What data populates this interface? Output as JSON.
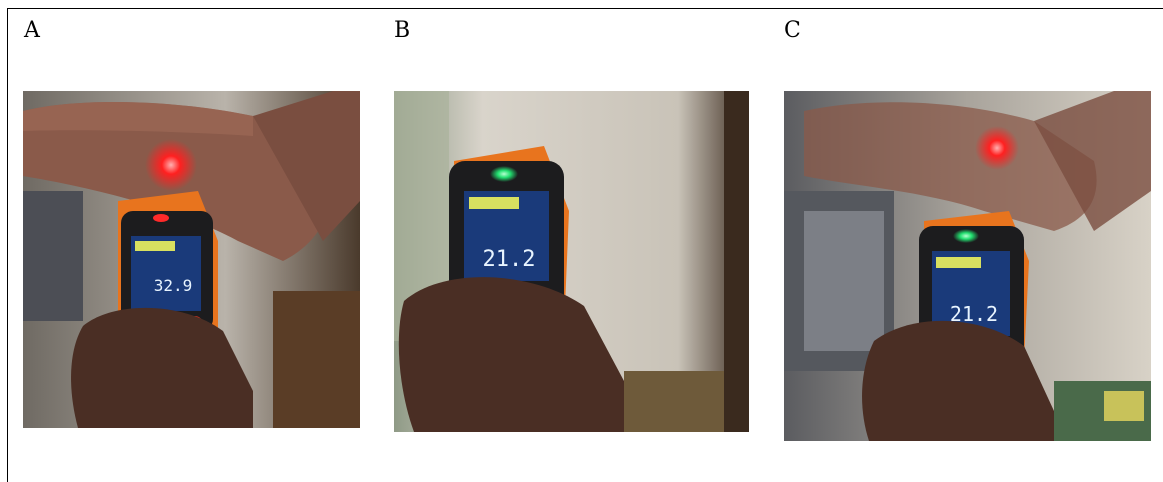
{
  "panels": [
    {
      "label": "A",
      "display_reading": "32.9",
      "indicator_color": "#ff2a2a"
    },
    {
      "label": "B",
      "display_reading": "21.2",
      "indicator_color": "#22e070"
    },
    {
      "label": "C",
      "display_reading": "21.2",
      "indicator_color": "#22e070"
    }
  ],
  "colors": {
    "laser_dot": "#ff2020",
    "thermometer_body": "#e8741e",
    "display_bg": "#1a3a7a"
  }
}
